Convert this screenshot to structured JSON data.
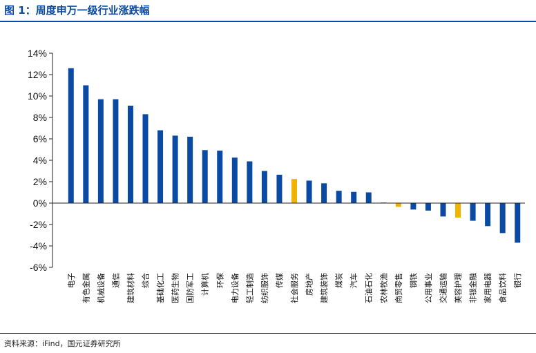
{
  "figure": {
    "title": "图 1：周度申万一级行业涨跌幅",
    "source": "资料来源：iFind，国元证券研究所"
  },
  "colors": {
    "primary": "#0b4aa2",
    "highlight": "#f0b400",
    "axis": "#222222"
  },
  "chart_data": {
    "type": "bar",
    "categories": [
      "电子",
      "有色金属",
      "机械设备",
      "通信",
      "建筑材料",
      "综合",
      "基础化工",
      "医药生物",
      "国防军工",
      "计算机",
      "环保",
      "电力设备",
      "轻工制造",
      "纺织服饰",
      "传媒",
      "社会服务",
      "房地产",
      "建筑装饰",
      "煤炭",
      "汽车",
      "石油石化",
      "农林牧渔",
      "商贸零售",
      "钢铁",
      "公用事业",
      "交通运输",
      "美容护理",
      "非银金融",
      "家用电器",
      "食品饮料",
      "银行"
    ],
    "values": [
      12.6,
      11.0,
      9.7,
      9.7,
      9.1,
      8.3,
      6.8,
      6.3,
      6.2,
      4.95,
      4.9,
      4.25,
      3.9,
      3.0,
      2.65,
      2.25,
      2.1,
      1.85,
      1.15,
      1.05,
      1.0,
      0.05,
      -0.35,
      -0.6,
      -0.7,
      -1.25,
      -1.35,
      -1.65,
      -2.15,
      -2.8,
      -3.7
    ],
    "highlighted_categories": [
      "社会服务",
      "商贸零售",
      "美容护理"
    ],
    "ylim": [
      -6,
      14
    ],
    "yticks": [
      "-6%",
      "-4%",
      "-2%",
      "0%",
      "2%",
      "4%",
      "6%",
      "8%",
      "10%",
      "12%",
      "14%"
    ],
    "ytick_values": [
      -6,
      -4,
      -2,
      0,
      2,
      4,
      6,
      8,
      10,
      12,
      14
    ],
    "xlabel": "",
    "ylabel": "",
    "grid": false,
    "legend": "none"
  }
}
